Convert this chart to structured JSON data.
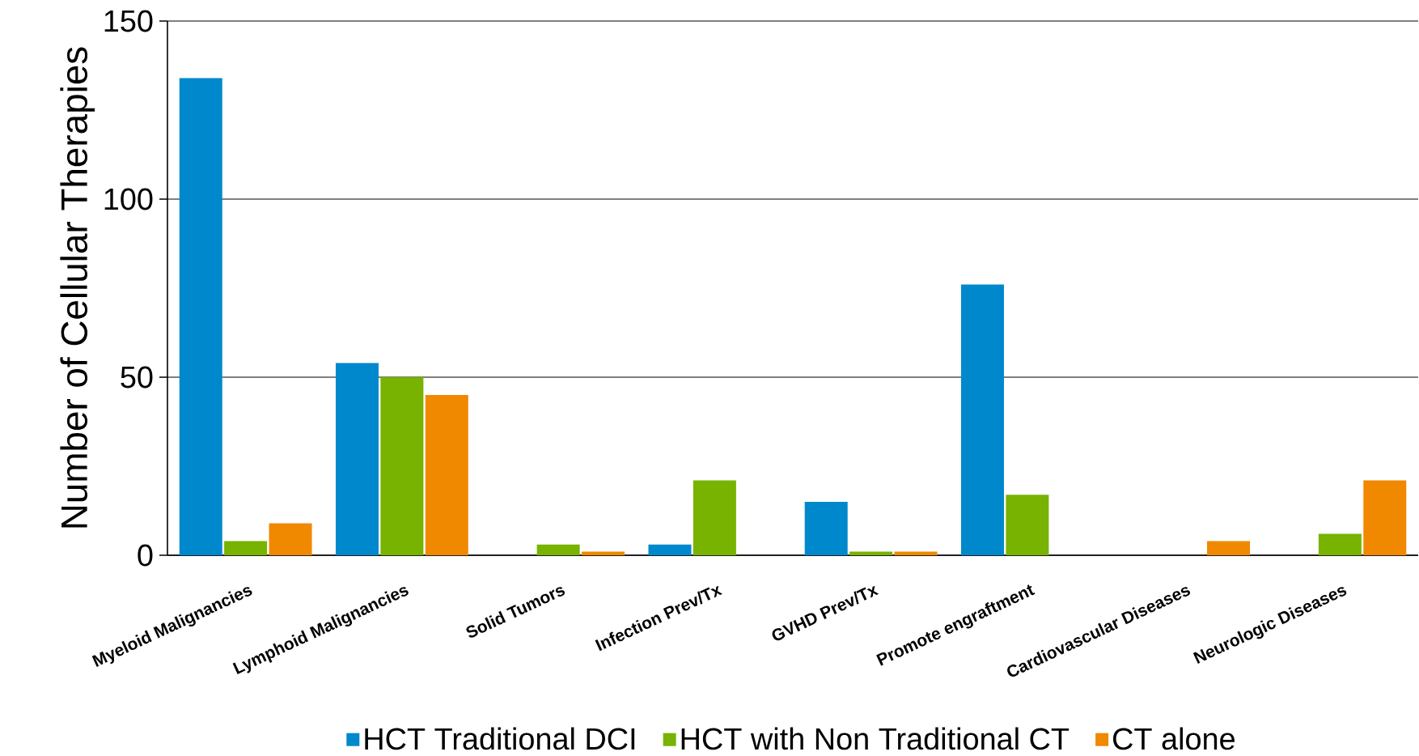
{
  "chart_data": {
    "type": "bar",
    "ylabel": "Number of Cellular Therapies",
    "categories": [
      "Myeloid Malignancies",
      "Lymphoid Malignancies",
      "Solid Tumors",
      "Infection Prev/Tx",
      "GVHD Prev/Tx",
      "Promote engraftment",
      "Cardiovascular Diseases",
      "Neurologic Diseases"
    ],
    "series": [
      {
        "name": "HCT Traditional DCI",
        "color": "#0088cc",
        "values": [
          134,
          54,
          0,
          3,
          15,
          76,
          0,
          0
        ]
      },
      {
        "name": "HCT with Non Traditional CT",
        "color": "#77b300",
        "values": [
          4,
          50,
          3,
          21,
          1,
          17,
          0,
          6
        ]
      },
      {
        "name": "CT alone",
        "color": "#f08800",
        "values": [
          9,
          45,
          1,
          0,
          1,
          0,
          4,
          21
        ]
      }
    ],
    "ylim": [
      0,
      150
    ],
    "yticks": [
      0,
      50,
      100,
      150
    ],
    "grid": "y",
    "legend": "bottom"
  }
}
